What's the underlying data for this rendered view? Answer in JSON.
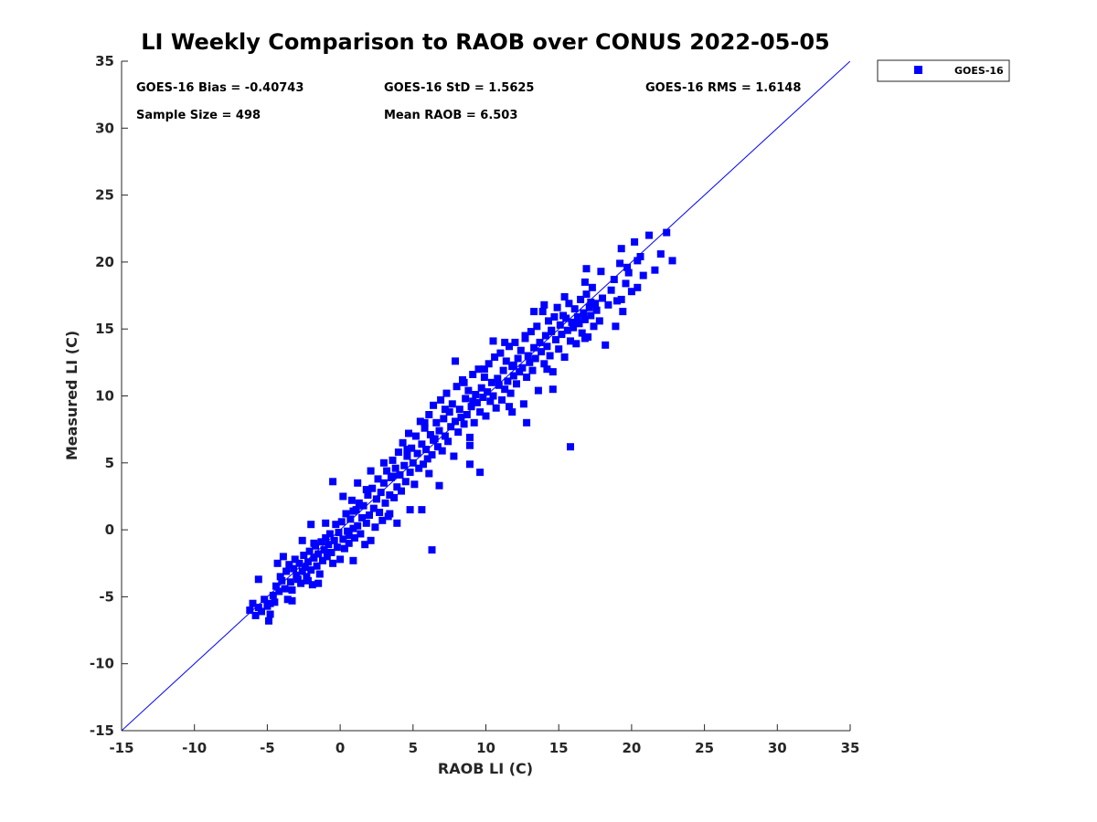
{
  "chart_data": {
    "type": "scatter",
    "title": "LI Weekly Comparison to RAOB over CONUS 2022-05-05",
    "xlabel": "RAOB LI (C)",
    "ylabel": "Measured LI (C)",
    "xlim": [
      -15,
      35
    ],
    "ylim": [
      -15,
      35
    ],
    "xticks": [
      "-15",
      "-10",
      "-5",
      "0",
      "5",
      "10",
      "15",
      "20",
      "25",
      "30",
      "35"
    ],
    "yticks": [
      "-15",
      "-10",
      "-5",
      "0",
      "5",
      "10",
      "15",
      "20",
      "25",
      "30",
      "35"
    ],
    "grid": false,
    "legend_position": "outside-top-right",
    "colors": {
      "series": "#0000ff",
      "line": "#0000ff",
      "axis": "#262626"
    },
    "reference_line": {
      "from": [
        -15,
        -15
      ],
      "to": [
        35,
        35
      ]
    },
    "stats": {
      "bias": "GOES-16 Bias = -0.40743",
      "std": "GOES-16 StD = 1.5625",
      "rms": "GOES-16 RMS = 1.6148",
      "sample_size": "Sample Size = 498",
      "mean_raob": "Mean RAOB = 6.503"
    },
    "series": [
      {
        "name": "GOES-16",
        "marker": "square",
        "points": [
          [
            -6.2,
            -6.0
          ],
          [
            -6.0,
            -5.5
          ],
          [
            -5.8,
            -6.4
          ],
          [
            -5.6,
            -5.8
          ],
          [
            -5.4,
            -6.1
          ],
          [
            -5.2,
            -5.2
          ],
          [
            -5.0,
            -5.7
          ],
          [
            -4.9,
            -6.8
          ],
          [
            -4.8,
            -6.3
          ],
          [
            -4.6,
            -4.9
          ],
          [
            -4.5,
            -5.4
          ],
          [
            -4.4,
            -4.2
          ],
          [
            -4.2,
            -4.6
          ],
          [
            -4.1,
            -3.5
          ],
          [
            -4.0,
            -3.8
          ],
          [
            -3.8,
            -4.4
          ],
          [
            -3.7,
            -3.1
          ],
          [
            -3.6,
            -5.2
          ],
          [
            -3.5,
            -2.6
          ],
          [
            -3.4,
            -3.9
          ],
          [
            -3.3,
            -4.5
          ],
          [
            -3.2,
            -2.9
          ],
          [
            -3.1,
            -2.2
          ],
          [
            -3.0,
            -3.4
          ],
          [
            -2.9,
            -3.7
          ],
          [
            -2.8,
            -2.5
          ],
          [
            -2.7,
            -4.0
          ],
          [
            -2.6,
            -3.1
          ],
          [
            -2.5,
            -1.9
          ],
          [
            -2.4,
            -2.8
          ],
          [
            -2.3,
            -3.5
          ],
          [
            -2.2,
            -2.4
          ],
          [
            -2.1,
            -1.6
          ],
          [
            -2.0,
            -3.0
          ],
          [
            -1.9,
            -4.1
          ],
          [
            -1.8,
            -2.1
          ],
          [
            -1.7,
            -1.2
          ],
          [
            -1.6,
            -2.7
          ],
          [
            -1.5,
            -1.8
          ],
          [
            -1.4,
            -3.3
          ],
          [
            -1.3,
            -0.9
          ],
          [
            -1.2,
            -2.3
          ],
          [
            -1.1,
            -1.5
          ],
          [
            -1.0,
            -0.6
          ],
          [
            -0.9,
            -2.0
          ],
          [
            -0.8,
            -1.1
          ],
          [
            -0.7,
            -0.3
          ],
          [
            -0.6,
            -1.7
          ],
          [
            -0.5,
            -2.5
          ],
          [
            -0.4,
            -0.8
          ],
          [
            -0.3,
            0.4
          ],
          [
            -0.2,
            -1.3
          ],
          [
            -0.1,
            -0.2
          ],
          [
            0.0,
            -2.2
          ],
          [
            0.1,
            0.6
          ],
          [
            0.2,
            -0.7
          ],
          [
            0.3,
            -1.4
          ],
          [
            0.4,
            1.2
          ],
          [
            0.5,
            -0.1
          ],
          [
            0.6,
            -1.0
          ],
          [
            0.7,
            0.8
          ],
          [
            0.8,
            2.2
          ],
          [
            0.9,
            0.1
          ],
          [
            1.0,
            -0.6
          ],
          [
            1.1,
            1.5
          ],
          [
            1.2,
            0.3
          ],
          [
            1.3,
            2.0
          ],
          [
            1.4,
            -0.3
          ],
          [
            1.5,
            0.9
          ],
          [
            1.6,
            1.8
          ],
          [
            1.7,
            -1.1
          ],
          [
            1.8,
            0.5
          ],
          [
            1.9,
            2.6
          ],
          [
            2.0,
            1.1
          ],
          [
            2.1,
            -0.8
          ],
          [
            2.2,
            3.1
          ],
          [
            2.3,
            1.6
          ],
          [
            2.4,
            0.2
          ],
          [
            2.5,
            2.3
          ],
          [
            2.6,
            3.8
          ],
          [
            2.7,
            1.3
          ],
          [
            2.8,
            2.8
          ],
          [
            2.9,
            0.7
          ],
          [
            3.0,
            3.5
          ],
          [
            3.1,
            2.0
          ],
          [
            3.2,
            4.4
          ],
          [
            3.3,
            1.0
          ],
          [
            3.4,
            2.6
          ],
          [
            3.5,
            3.9
          ],
          [
            3.6,
            5.2
          ],
          [
            3.7,
            2.4
          ],
          [
            3.8,
            4.6
          ],
          [
            3.9,
            3.2
          ],
          [
            4.0,
            5.8
          ],
          [
            4.1,
            4.1
          ],
          [
            4.2,
            2.9
          ],
          [
            4.3,
            6.5
          ],
          [
            4.4,
            4.8
          ],
          [
            4.5,
            3.6
          ],
          [
            4.6,
            5.5
          ],
          [
            4.7,
            7.2
          ],
          [
            4.8,
            4.3
          ],
          [
            4.9,
            6.1
          ],
          [
            5.0,
            5.0
          ],
          [
            5.1,
            3.4
          ],
          [
            5.2,
            7.0
          ],
          [
            5.3,
            5.7
          ],
          [
            5.4,
            4.6
          ],
          [
            5.5,
            8.1
          ],
          [
            5.6,
            6.4
          ],
          [
            5.7,
            4.9
          ],
          [
            5.8,
            7.6
          ],
          [
            5.9,
            6.0
          ],
          [
            6.0,
            5.3
          ],
          [
            6.1,
            8.6
          ],
          [
            6.2,
            7.1
          ],
          [
            6.3,
            5.6
          ],
          [
            6.4,
            9.3
          ],
          [
            6.5,
            6.8
          ],
          [
            6.6,
            8.0
          ],
          [
            6.7,
            6.2
          ],
          [
            6.8,
            7.4
          ],
          [
            6.9,
            9.7
          ],
          [
            7.0,
            5.9
          ],
          [
            7.1,
            8.3
          ],
          [
            7.2,
            7.0
          ],
          [
            7.3,
            10.2
          ],
          [
            7.4,
            6.6
          ],
          [
            7.5,
            8.8
          ],
          [
            7.6,
            7.7
          ],
          [
            7.7,
            9.4
          ],
          [
            7.8,
            5.5
          ],
          [
            7.9,
            8.1
          ],
          [
            8.0,
            10.7
          ],
          [
            8.1,
            7.3
          ],
          [
            8.2,
            9.0
          ],
          [
            8.3,
            8.4
          ],
          [
            8.4,
            11.2
          ],
          [
            8.5,
            7.9
          ],
          [
            8.6,
            9.8
          ],
          [
            8.7,
            8.6
          ],
          [
            8.8,
            10.4
          ],
          [
            8.9,
            6.3
          ],
          [
            9.0,
            9.2
          ],
          [
            9.1,
            11.6
          ],
          [
            9.2,
            8.0
          ],
          [
            9.3,
            10.1
          ],
          [
            9.4,
            9.5
          ],
          [
            9.5,
            12.0
          ],
          [
            9.6,
            8.8
          ],
          [
            9.7,
            10.6
          ],
          [
            9.8,
            9.9
          ],
          [
            9.9,
            11.4
          ],
          [
            10.0,
            8.5
          ],
          [
            10.1,
            10.3
          ],
          [
            10.2,
            12.4
          ],
          [
            10.3,
            9.6
          ],
          [
            10.4,
            11.0
          ],
          [
            10.5,
            10.0
          ],
          [
            10.6,
            12.9
          ],
          [
            10.7,
            9.1
          ],
          [
            10.8,
            11.3
          ],
          [
            10.9,
            10.8
          ],
          [
            11.0,
            13.2
          ],
          [
            11.1,
            9.7
          ],
          [
            11.2,
            11.9
          ],
          [
            11.3,
            10.5
          ],
          [
            11.4,
            12.6
          ],
          [
            11.5,
            11.1
          ],
          [
            11.6,
            13.7
          ],
          [
            11.7,
            10.2
          ],
          [
            11.8,
            12.2
          ],
          [
            11.9,
            11.5
          ],
          [
            12.0,
            14.0
          ],
          [
            12.1,
            10.9
          ],
          [
            12.2,
            12.8
          ],
          [
            12.3,
            11.8
          ],
          [
            12.4,
            13.4
          ],
          [
            12.5,
            12.1
          ],
          [
            12.6,
            9.4
          ],
          [
            12.7,
            14.3
          ],
          [
            12.8,
            11.4
          ],
          [
            12.9,
            13.0
          ],
          [
            13.0,
            12.5
          ],
          [
            13.1,
            14.8
          ],
          [
            13.2,
            11.9
          ],
          [
            13.3,
            13.6
          ],
          [
            13.4,
            12.8
          ],
          [
            13.5,
            15.2
          ],
          [
            13.6,
            10.4
          ],
          [
            13.7,
            14.0
          ],
          [
            13.8,
            13.3
          ],
          [
            13.9,
            16.3
          ],
          [
            14.0,
            12.4
          ],
          [
            14.1,
            14.5
          ],
          [
            14.2,
            13.7
          ],
          [
            14.3,
            15.6
          ],
          [
            14.4,
            13.0
          ],
          [
            14.5,
            14.9
          ],
          [
            14.6,
            11.8
          ],
          [
            14.7,
            15.9
          ],
          [
            14.8,
            14.2
          ],
          [
            14.9,
            16.6
          ],
          [
            15.0,
            13.5
          ],
          [
            15.1,
            15.3
          ],
          [
            15.2,
            14.6
          ],
          [
            15.3,
            16.0
          ],
          [
            15.4,
            12.9
          ],
          [
            15.5,
            15.8
          ],
          [
            15.6,
            14.9
          ],
          [
            15.7,
            16.9
          ],
          [
            15.8,
            14.1
          ],
          [
            15.9,
            15.5
          ],
          [
            16.0,
            15.1
          ],
          [
            16.1,
            16.5
          ],
          [
            16.2,
            13.9
          ],
          [
            16.3,
            15.9
          ],
          [
            16.4,
            15.4
          ],
          [
            16.5,
            17.2
          ],
          [
            16.6,
            14.7
          ],
          [
            16.7,
            16.2
          ],
          [
            16.8,
            15.7
          ],
          [
            16.9,
            17.6
          ],
          [
            17.0,
            14.4
          ],
          [
            17.1,
            16.6
          ],
          [
            17.2,
            16.0
          ],
          [
            17.3,
            18.1
          ],
          [
            17.4,
            15.2
          ],
          [
            17.5,
            16.9
          ],
          [
            17.6,
            16.4
          ],
          [
            17.8,
            15.6
          ],
          [
            18.0,
            17.3
          ],
          [
            18.2,
            13.8
          ],
          [
            18.4,
            16.8
          ],
          [
            18.6,
            17.9
          ],
          [
            18.8,
            18.7
          ],
          [
            19.0,
            17.1
          ],
          [
            19.2,
            19.9
          ],
          [
            19.4,
            16.3
          ],
          [
            19.6,
            18.4
          ],
          [
            19.8,
            19.2
          ],
          [
            20.0,
            17.8
          ],
          [
            20.2,
            21.5
          ],
          [
            20.4,
            18.1
          ],
          [
            20.6,
            20.4
          ],
          [
            20.8,
            19.0
          ],
          [
            21.2,
            22.0
          ],
          [
            21.6,
            19.4
          ],
          [
            22.0,
            20.6
          ],
          [
            22.4,
            22.2
          ],
          [
            22.8,
            20.1
          ],
          [
            6.3,
            -1.5
          ],
          [
            9.6,
            4.3
          ],
          [
            15.8,
            6.2
          ],
          [
            4.8,
            1.5
          ],
          [
            12.8,
            8.0
          ],
          [
            1.2,
            3.5
          ],
          [
            -2.0,
            0.4
          ],
          [
            7.9,
            12.6
          ],
          [
            10.5,
            14.1
          ],
          [
            13.3,
            16.3
          ],
          [
            16.8,
            18.5
          ],
          [
            2.1,
            4.4
          ],
          [
            -0.5,
            3.6
          ],
          [
            8.9,
            4.9
          ],
          [
            11.8,
            8.8
          ],
          [
            14.6,
            10.5
          ],
          [
            5.6,
            1.5
          ],
          [
            -3.3,
            -5.3
          ],
          [
            0.9,
            -2.3
          ],
          [
            -1.5,
            -4.0
          ],
          [
            3.9,
            0.5
          ],
          [
            6.8,
            3.3
          ],
          [
            18.9,
            15.2
          ],
          [
            20.4,
            20.1
          ],
          [
            -5.6,
            -3.7
          ],
          [
            -2.6,
            -0.8
          ],
          [
            0.2,
            2.5
          ],
          [
            3.0,
            5.0
          ],
          [
            5.8,
            8.0
          ],
          [
            8.5,
            11.0
          ],
          [
            11.3,
            14.0
          ],
          [
            14.0,
            16.8
          ],
          [
            16.9,
            19.5
          ],
          [
            19.3,
            21.0
          ],
          [
            -4.3,
            -2.5
          ],
          [
            -1.0,
            0.5
          ],
          [
            1.8,
            3.0
          ],
          [
            4.6,
            6.0
          ],
          [
            7.2,
            9.0
          ],
          [
            9.9,
            12.0
          ],
          [
            12.7,
            14.5
          ],
          [
            15.4,
            17.4
          ],
          [
            17.9,
            19.3
          ],
          [
            -4.8,
            -5.5
          ],
          [
            -2.2,
            -3.8
          ],
          [
            0.6,
            -0.4
          ],
          [
            3.4,
            1.2
          ],
          [
            6.1,
            4.2
          ],
          [
            8.9,
            6.9
          ],
          [
            11.6,
            9.2
          ],
          [
            14.2,
            12.0
          ],
          [
            16.8,
            14.3
          ],
          [
            19.3,
            17.2
          ],
          [
            -3.9,
            -2.0
          ],
          [
            -1.8,
            -1.0
          ],
          [
            0.9,
            1.4
          ],
          [
            3.6,
            4.0
          ],
          [
            6.4,
            6.7
          ],
          [
            9.1,
            9.6
          ],
          [
            11.9,
            12.3
          ],
          [
            14.5,
            14.8
          ],
          [
            17.2,
            17.0
          ],
          [
            19.7,
            19.6
          ]
        ]
      }
    ]
  }
}
